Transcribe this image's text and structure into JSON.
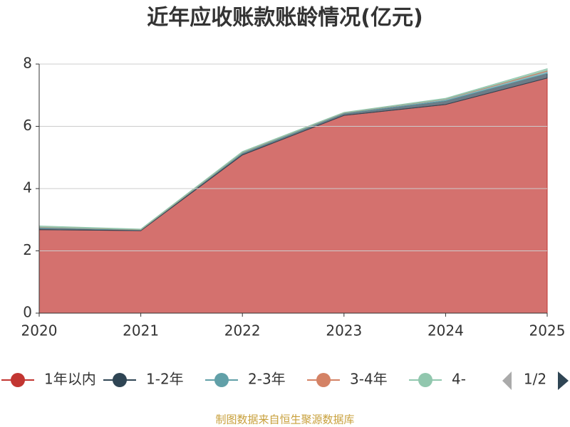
{
  "chart_data": {
    "type": "stacked_area",
    "title": "近年应收账款账龄情况(亿元)",
    "categories": [
      "2020",
      "2021",
      "2022",
      "2023",
      "2024",
      "2025"
    ],
    "series": [
      {
        "name": "1年以内",
        "color": "#c23531",
        "values": [
          2.68,
          2.65,
          5.08,
          6.35,
          6.7,
          7.55
        ]
      },
      {
        "name": "1-2年",
        "color": "#2f4554",
        "values": [
          0.05,
          0.02,
          0.05,
          0.06,
          0.12,
          0.15
        ]
      },
      {
        "name": "2-3年",
        "color": "#61a0a8",
        "values": [
          0.03,
          0.01,
          0.03,
          0.02,
          0.05,
          0.07
        ]
      },
      {
        "name": "3-4年",
        "color": "#d48265",
        "values": [
          0.01,
          0.01,
          0.01,
          0.01,
          0.01,
          0.03
        ]
      },
      {
        "name": "4-",
        "color": "#91c7ae",
        "values": [
          0.03,
          0.01,
          0.02,
          0.01,
          0.02,
          0.05
        ]
      }
    ],
    "ylim": [
      0,
      8
    ],
    "yticks": [
      0,
      2,
      4,
      6,
      8
    ],
    "grid": true,
    "legend_page": "1/2",
    "source": "制图数据来自恒生聚源数据库"
  }
}
